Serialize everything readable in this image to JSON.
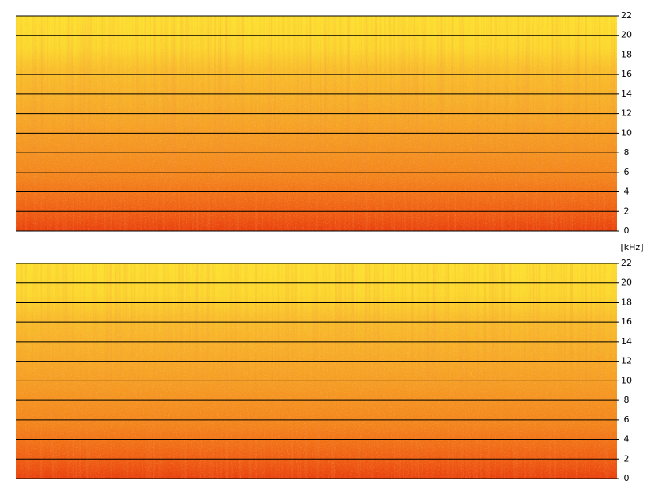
{
  "chart_data": [
    {
      "type": "spectrogram",
      "y_label": "[kHz]",
      "ylim": [
        0,
        22
      ],
      "yticks": [
        0,
        2,
        4,
        6,
        8,
        10,
        12,
        14,
        16,
        18,
        20,
        22
      ],
      "grid": true
    },
    {
      "type": "spectrogram",
      "ylim": [
        0,
        22
      ],
      "yticks": [
        0,
        2,
        4,
        6,
        8,
        10,
        12,
        14,
        16,
        18,
        20,
        22
      ],
      "grid": true
    }
  ]
}
